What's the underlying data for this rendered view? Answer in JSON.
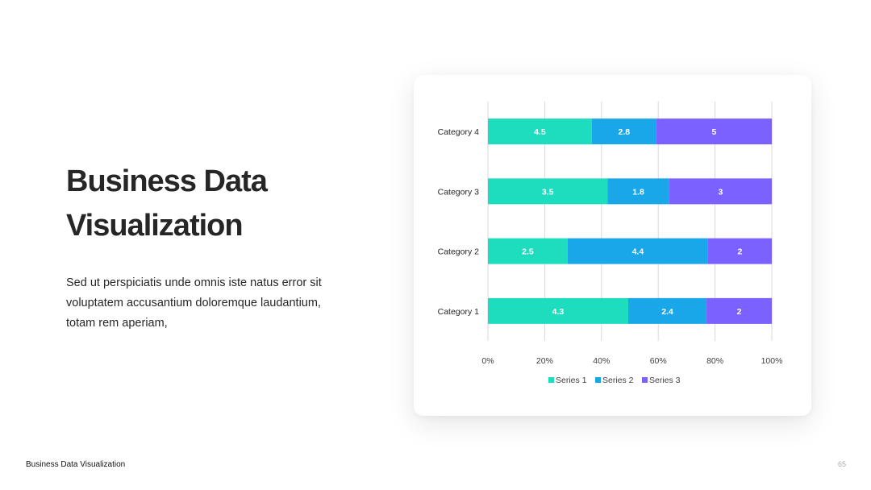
{
  "slide": {
    "title_lines": [
      "Business Data",
      "Visualization"
    ],
    "body_lines": [
      "Sed ut perspiciatis unde omnis iste natus error sit",
      "voluptatem accusantium doloremque laudantium,",
      "totam rem aperiam,"
    ],
    "footer_title": "Business Data Visualization",
    "page_number": "65"
  },
  "chart_data": {
    "type": "bar",
    "orientation": "horizontal",
    "stacking": "percent",
    "categories": [
      "Category 1",
      "Category 2",
      "Category 3",
      "Category 4"
    ],
    "series": [
      {
        "name": "Series 1",
        "values": [
          4.3,
          2.5,
          3.5,
          4.5
        ],
        "color": "#1DDDBE"
      },
      {
        "name": "Series 2",
        "values": [
          2.4,
          4.4,
          1.8,
          2.8
        ],
        "color": "#19A7E9"
      },
      {
        "name": "Series 3",
        "values": [
          2,
          2,
          3,
          5
        ],
        "color": "#7B61FF"
      }
    ],
    "x_ticks": [
      "0%",
      "20%",
      "40%",
      "60%",
      "80%",
      "100%"
    ],
    "xlim": [
      0,
      100
    ],
    "grid": "vertical",
    "legend": "bottom",
    "data_labels": true,
    "label_color": "#ffffff"
  }
}
